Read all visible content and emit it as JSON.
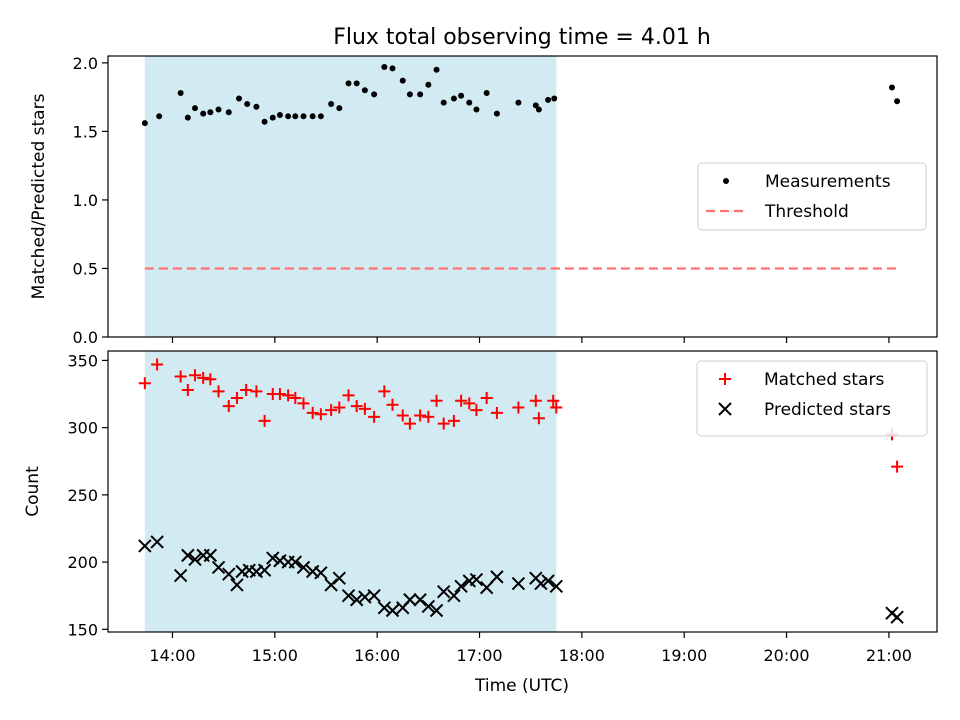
{
  "chart_data": {
    "title": "Flux total observing time = 4.01 h",
    "shared_x": {
      "label": "Time (UTC)",
      "ticks": [
        "14:00",
        "15:00",
        "16:00",
        "17:00",
        "18:00",
        "19:00",
        "20:00",
        "21:00"
      ],
      "range_hours": [
        13.37,
        21.47
      ]
    },
    "shaded_interval_hours": [
      13.73,
      17.75
    ],
    "shade_color": "#add8e6",
    "panels": [
      {
        "type": "scatter",
        "ylabel": "Matched/Predicted stars",
        "ylim": [
          0,
          2.05
        ],
        "yticks": [
          "0.0",
          "0.5",
          "1.0",
          "1.5",
          "2.0"
        ],
        "legend_position": "right",
        "series": [
          {
            "name": "Measurements",
            "marker": "dot",
            "color": "#000000",
            "x": [
              13.73,
              13.87,
              14.08,
              14.15,
              14.22,
              14.3,
              14.37,
              14.45,
              14.55,
              14.65,
              14.73,
              14.82,
              14.9,
              14.98,
              15.05,
              15.13,
              15.2,
              15.28,
              15.37,
              15.45,
              15.55,
              15.63,
              15.72,
              15.8,
              15.88,
              15.97,
              16.07,
              16.15,
              16.25,
              16.32,
              16.42,
              16.5,
              16.58,
              16.65,
              16.75,
              16.82,
              16.9,
              16.97,
              17.07,
              17.17,
              17.38,
              17.55,
              17.58,
              17.67,
              17.73,
              21.03,
              21.08
            ],
            "y": [
              1.56,
              1.61,
              1.78,
              1.6,
              1.67,
              1.63,
              1.64,
              1.66,
              1.64,
              1.74,
              1.7,
              1.68,
              1.57,
              1.6,
              1.62,
              1.61,
              1.61,
              1.61,
              1.61,
              1.61,
              1.7,
              1.67,
              1.85,
              1.85,
              1.8,
              1.77,
              1.97,
              1.96,
              1.87,
              1.77,
              1.77,
              1.84,
              1.95,
              1.71,
              1.74,
              1.76,
              1.71,
              1.66,
              1.78,
              1.63,
              1.71,
              1.69,
              1.66,
              1.73,
              1.74,
              1.82,
              1.72
            ]
          },
          {
            "name": "Threshold",
            "marker": "dashed-line",
            "color": "#ff7070",
            "x": [
              13.73,
              21.08
            ],
            "y": [
              0.5,
              0.5
            ]
          }
        ]
      },
      {
        "type": "scatter",
        "ylabel": "Count",
        "ylim": [
          148,
          357
        ],
        "yticks": [
          "150",
          "200",
          "250",
          "300",
          "350"
        ],
        "legend_position": "top-right",
        "series": [
          {
            "name": "Matched stars",
            "marker": "plus",
            "color": "#ff0000",
            "x": [
              13.73,
              13.85,
              14.08,
              14.15,
              14.22,
              14.3,
              14.37,
              14.45,
              14.55,
              14.63,
              14.72,
              14.82,
              14.9,
              14.98,
              15.05,
              15.13,
              15.2,
              15.28,
              15.37,
              15.45,
              15.55,
              15.63,
              15.72,
              15.8,
              15.88,
              15.97,
              16.07,
              16.15,
              16.25,
              16.32,
              16.42,
              16.5,
              16.58,
              16.65,
              16.75,
              16.82,
              16.9,
              16.97,
              17.07,
              17.17,
              17.38,
              17.55,
              17.58,
              17.72,
              17.75,
              21.03,
              21.08
            ],
            "y": [
              333,
              347,
              338,
              328,
              339,
              337,
              336,
              327,
              316,
              322,
              328,
              327,
              305,
              325,
              325,
              324,
              322,
              318,
              311,
              310,
              313,
              315,
              324,
              316,
              314,
              308,
              327,
              317,
              309,
              303,
              309,
              308,
              320,
              303,
              305,
              320,
              318,
              313,
              322,
              311,
              315,
              320,
              307,
              320,
              315,
              295,
              271
            ]
          },
          {
            "name": "Predicted stars",
            "marker": "x",
            "color": "#000000",
            "x": [
              13.73,
              13.85,
              14.08,
              14.15,
              14.22,
              14.3,
              14.37,
              14.45,
              14.55,
              14.63,
              14.68,
              14.75,
              14.82,
              14.9,
              14.98,
              15.05,
              15.13,
              15.2,
              15.28,
              15.37,
              15.45,
              15.55,
              15.63,
              15.72,
              15.8,
              15.88,
              15.97,
              16.07,
              16.15,
              16.25,
              16.32,
              16.42,
              16.5,
              16.58,
              16.65,
              16.75,
              16.82,
              16.9,
              16.97,
              17.07,
              17.17,
              17.38,
              17.55,
              17.6,
              17.67,
              17.75,
              21.03,
              21.08
            ],
            "y": [
              212,
              215,
              190,
              205,
              202,
              205,
              205,
              196,
              191,
              183,
              193,
              194,
              193,
              194,
              203,
              201,
              200,
              200,
              196,
              193,
              192,
              183,
              188,
              175,
              172,
              174,
              175,
              166,
              164,
              166,
              172,
              172,
              167,
              164,
              178,
              175,
              182,
              186,
              187,
              181,
              189,
              184,
              188,
              184,
              186,
              182,
              162,
              159
            ]
          }
        ]
      }
    ]
  }
}
